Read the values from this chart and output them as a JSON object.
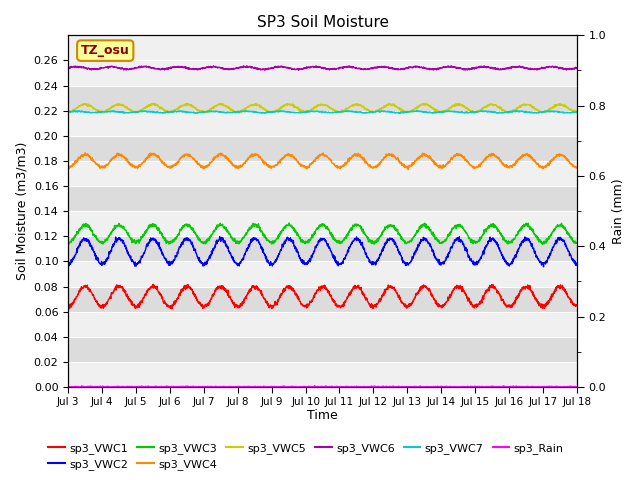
{
  "title": "SP3 Soil Moisture",
  "xlabel": "Time",
  "ylabel_left": "Soil Moisture (m3/m3)",
  "ylabel_right": "Rain (mm)",
  "ylim_left": [
    0.0,
    0.28
  ],
  "ylim_right": [
    0.0,
    1.0
  ],
  "yticks_left": [
    0.0,
    0.02,
    0.04,
    0.06,
    0.08,
    0.1,
    0.12,
    0.14,
    0.16,
    0.18,
    0.2,
    0.22,
    0.24,
    0.26
  ],
  "yticks_right": [
    0.0,
    0.2,
    0.4,
    0.6,
    0.8,
    1.0
  ],
  "xtick_labels": [
    "Jul 3",
    "Jul 4",
    "Jul 5",
    "Jul 6",
    "Jul 7",
    "Jul 8",
    "Jul 9",
    "Jul 10",
    "Jul 11",
    "Jul 12",
    "Jul 13",
    "Jul 14",
    "Jul 15",
    "Jul 16",
    "Jul 17",
    "Jul 18"
  ],
  "n_days": 15,
  "n_points": 1800,
  "series": {
    "sp3_VWC1": {
      "color": "#ff0000"
    },
    "sp3_VWC2": {
      "color": "#0000ff"
    },
    "sp3_VWC3": {
      "color": "#00cc00"
    },
    "sp3_VWC4": {
      "color": "#ff8800"
    },
    "sp3_VWC5": {
      "color": "#cccc00"
    },
    "sp3_VWC6": {
      "color": "#aa00aa"
    },
    "sp3_VWC7": {
      "color": "#00cccc"
    },
    "sp3_Rain": {
      "color": "#ff00ff"
    }
  },
  "legend_label": "TZ_osu",
  "legend_bg": "#ffff99",
  "legend_border": "#cc8800",
  "bg_light": "#f0f0f0",
  "bg_dark": "#dcdcdc",
  "grid_color": "#ffffff"
}
